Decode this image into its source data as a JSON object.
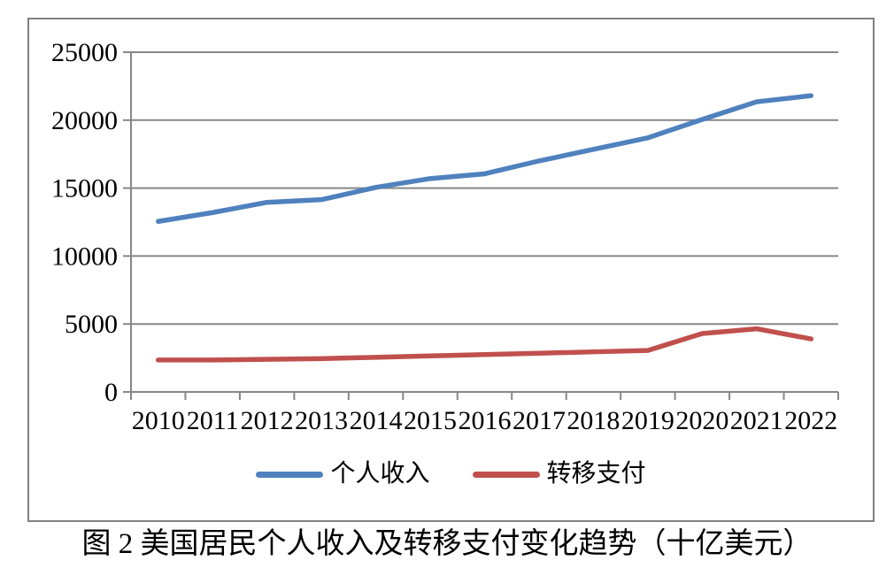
{
  "figure": {
    "caption": "图 2 美国居民个人收入及转移支付变化趋势（十亿美元）"
  },
  "chart_data": {
    "type": "line",
    "title": "",
    "xlabel": "",
    "ylabel": "",
    "unit_note": "十亿美元",
    "categories": [
      "2010",
      "2011",
      "2012",
      "2013",
      "2014",
      "2015",
      "2016",
      "2017",
      "2018",
      "2019",
      "2020",
      "2021",
      "2022"
    ],
    "series": [
      {
        "name": "个人收入",
        "slug": "personal-income",
        "color": "#4F81BD",
        "values": [
          12550,
          13200,
          13950,
          14150,
          15050,
          15700,
          16050,
          17000,
          17850,
          18700,
          20050,
          21350,
          21800
        ]
      },
      {
        "name": "转移支付",
        "slug": "transfer-payments",
        "color": "#C0504D",
        "values": [
          2350,
          2350,
          2400,
          2450,
          2550,
          2650,
          2750,
          2850,
          2950,
          3050,
          4300,
          4650,
          3900
        ]
      }
    ],
    "ylim": [
      0,
      25000
    ],
    "yticks": [
      0,
      5000,
      10000,
      15000,
      20000,
      25000
    ],
    "grid": "horizontal",
    "gridline_color": "#878787",
    "legend_position": "bottom"
  }
}
